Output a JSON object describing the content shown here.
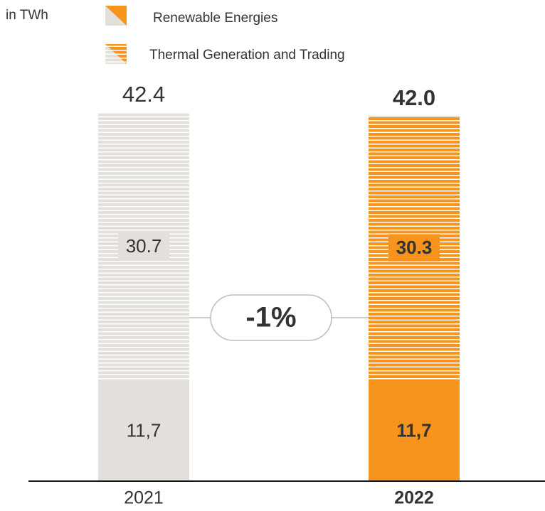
{
  "chart_data": {
    "type": "stacked-bar",
    "unit_label": "in TWh",
    "categories": [
      "2021",
      "2022"
    ],
    "category_colors": [
      "#e3dfda",
      "#f7941d"
    ],
    "highlight": [
      false,
      true
    ],
    "series": [
      {
        "name": "Renewable Energies",
        "style": "solid",
        "values": [
          11.7,
          11.7
        ],
        "value_labels": [
          "11,7",
          "11,7"
        ]
      },
      {
        "name": "Thermal Generation and Trading",
        "style": "striped",
        "values": [
          30.7,
          30.3
        ]
      }
    ],
    "totals": [
      42.4,
      42.0
    ],
    "total_labels": [
      "42.4",
      "42.0"
    ],
    "change_annotation": "-1%"
  }
}
